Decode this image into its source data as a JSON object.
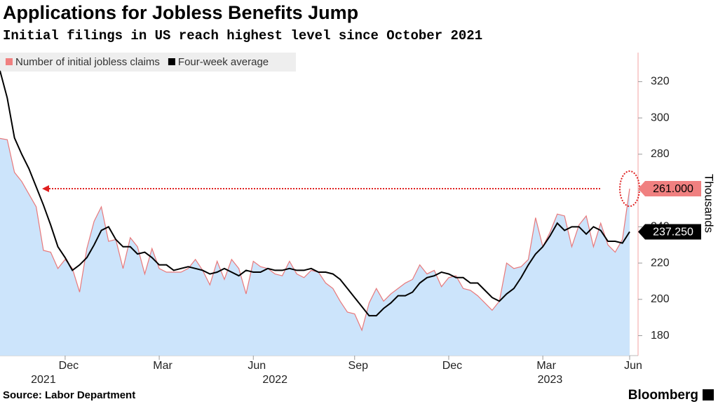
{
  "chart_data": {
    "type": "area-line",
    "title": "Applications for Jobless Benefits Jump",
    "subtitle": "Initial filings in US reach highest level since October 2021",
    "y_label": "Thousands",
    "source": "Source: Labor Department",
    "brand": "Bloomberg",
    "categories": [
      null,
      null,
      null,
      null,
      null,
      null,
      null,
      null,
      null,
      "Dec",
      null,
      null,
      null,
      null,
      null,
      null,
      null,
      null,
      null,
      null,
      null,
      null,
      "Mar",
      null,
      null,
      null,
      null,
      null,
      null,
      null,
      null,
      null,
      null,
      null,
      null,
      "Jun",
      null,
      null,
      null,
      null,
      null,
      null,
      null,
      null,
      null,
      null,
      null,
      null,
      null,
      "Sep",
      null,
      null,
      null,
      null,
      null,
      null,
      null,
      null,
      null,
      null,
      null,
      null,
      "Dec",
      null,
      null,
      null,
      null,
      null,
      null,
      null,
      null,
      null,
      null,
      null,
      null,
      "Mar",
      null,
      null,
      null,
      null,
      null,
      null,
      null,
      null,
      null,
      null,
      null,
      "Jun"
    ],
    "category_years": [
      null,
      null,
      null,
      null,
      null,
      null,
      "2021",
      null,
      null,
      null,
      null,
      null,
      null,
      null,
      null,
      null,
      null,
      null,
      null,
      null,
      null,
      null,
      null,
      null,
      null,
      null,
      null,
      null,
      null,
      null,
      null,
      null,
      null,
      null,
      null,
      null,
      null,
      null,
      "2022",
      null,
      null,
      null,
      null,
      null,
      null,
      null,
      null,
      null,
      null,
      null,
      null,
      null,
      null,
      null,
      null,
      null,
      null,
      null,
      null,
      null,
      null,
      null,
      null,
      null,
      null,
      null,
      null,
      null,
      null,
      null,
      null,
      null,
      null,
      null,
      null,
      null,
      "2023",
      null,
      null,
      null,
      null,
      null,
      null,
      null,
      null,
      null,
      null,
      null
    ],
    "ylim": [
      169,
      336
    ],
    "yticks": [
      180,
      200,
      220,
      240,
      260,
      280,
      300,
      320
    ],
    "series": [
      {
        "name": "Number of initial jobless claims",
        "color": "#e8787a",
        "area_color": "#cce4fb",
        "values": [
          288.7,
          288,
          270,
          265,
          258,
          251,
          227,
          226,
          217,
          222,
          217,
          204,
          228,
          243,
          251,
          232,
          233,
          217,
          234,
          229,
          214,
          228,
          217,
          215,
          215,
          215,
          217,
          222,
          216,
          208,
          221,
          211,
          222,
          217,
          203,
          221,
          218,
          217,
          214,
          213,
          221,
          214,
          212,
          216,
          215,
          209,
          206,
          199,
          193,
          192,
          183,
          198,
          206,
          199,
          203,
          206,
          209,
          211,
          219,
          214,
          216,
          207,
          212,
          213,
          206,
          205,
          202,
          198,
          194,
          199,
          220,
          217,
          218,
          222,
          245,
          229,
          237,
          247,
          246,
          229,
          241,
          246,
          229,
          242,
          230,
          226,
          233,
          261
        ],
        "value_labels": [
          null,
          null,
          null,
          null,
          null,
          null,
          null,
          null,
          null,
          null,
          null,
          null,
          null,
          null,
          null,
          null,
          null,
          null,
          null,
          null,
          null,
          null,
          null,
          null,
          null,
          null,
          null,
          null,
          null,
          null,
          null,
          null,
          null,
          null,
          null,
          null,
          null,
          null,
          null,
          null,
          null,
          null,
          null,
          null,
          null,
          null,
          null,
          null,
          null,
          null,
          null,
          null,
          null,
          null,
          null,
          null,
          null,
          null,
          null,
          null,
          null,
          null,
          null,
          null,
          null,
          null,
          null,
          null,
          null,
          null,
          null,
          null,
          null,
          null,
          null,
          null,
          null,
          null,
          null,
          null,
          null,
          null,
          null,
          null,
          null,
          null,
          null,
          "261.000"
        ]
      },
      {
        "name": "Four-week average",
        "color": "#000000",
        "values": [
          326,
          311,
          289,
          280,
          272,
          262,
          252,
          241,
          229,
          223,
          216,
          219,
          223,
          230,
          238,
          240,
          233,
          229,
          229,
          225,
          226,
          223,
          219,
          219,
          216,
          217,
          218,
          217,
          216,
          214,
          215,
          217,
          215,
          213,
          216,
          215,
          215,
          217,
          216,
          216,
          217,
          216,
          216,
          217,
          215,
          215,
          214,
          211,
          206,
          201,
          196,
          191,
          191,
          195,
          198,
          202,
          202,
          204,
          209,
          212,
          213,
          215,
          214,
          212,
          212,
          209,
          209,
          205,
          201,
          199,
          203,
          206,
          212,
          219,
          225,
          229,
          235,
          242,
          238,
          240,
          240,
          236,
          240,
          238,
          232,
          232,
          231,
          237.25
        ],
        "value_labels": [
          null,
          null,
          null,
          null,
          null,
          null,
          null,
          null,
          null,
          null,
          null,
          null,
          null,
          null,
          null,
          null,
          null,
          null,
          null,
          null,
          null,
          null,
          null,
          null,
          null,
          null,
          null,
          null,
          null,
          null,
          null,
          null,
          null,
          null,
          null,
          null,
          null,
          null,
          null,
          null,
          null,
          null,
          null,
          null,
          null,
          null,
          null,
          null,
          null,
          null,
          null,
          null,
          null,
          null,
          null,
          null,
          null,
          null,
          null,
          null,
          null,
          null,
          null,
          null,
          null,
          null,
          null,
          null,
          null,
          null,
          null,
          null,
          null,
          null,
          null,
          null,
          null,
          null,
          null,
          null,
          null,
          null,
          null,
          null,
          null,
          null,
          null,
          "237.250"
        ]
      }
    ]
  }
}
